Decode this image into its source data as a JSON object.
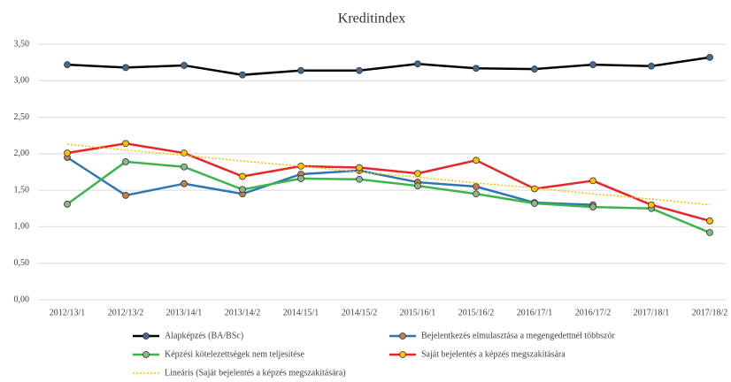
{
  "chart_data": {
    "type": "line",
    "title": "Kreditindex",
    "categories": [
      "2012/13/1",
      "2012/13/2",
      "2013/14/1",
      "2013/14/2",
      "2014/15/1",
      "2014/15/2",
      "2015/16/1",
      "2015/16/2",
      "2016/17/1",
      "2016/17/2",
      "2017/18/1",
      "2017/18/2"
    ],
    "series": [
      {
        "name": "Alapképzés (BA/BSc)",
        "color": "#000000",
        "marker_color": "#44698f",
        "values": [
          3.22,
          3.18,
          3.21,
          3.08,
          3.14,
          3.14,
          3.23,
          3.17,
          3.16,
          3.22,
          3.2,
          3.32
        ]
      },
      {
        "name": "Bejelentkezés elmulasztása a megengedettnél többször",
        "color": "#2e75b6",
        "marker_color": "#c0804a",
        "values": [
          1.95,
          1.43,
          1.59,
          1.45,
          1.72,
          1.77,
          1.61,
          1.55,
          1.33,
          1.3,
          null,
          null
        ]
      },
      {
        "name": "Képzési kötelezettségek nem teljesítése",
        "color": "#3cb44b",
        "marker_color": "#8fb48f",
        "values": [
          1.31,
          1.89,
          1.82,
          1.51,
          1.66,
          1.65,
          1.56,
          1.45,
          1.32,
          1.27,
          1.25,
          0.92
        ]
      },
      {
        "name": "Saját bejelentés a képzés megszakítására",
        "color": "#e8262a",
        "marker_color": "#ffc000",
        "values": [
          2.01,
          2.14,
          2.01,
          1.69,
          1.83,
          1.81,
          1.73,
          1.91,
          1.52,
          1.63,
          1.3,
          1.08
        ]
      },
      {
        "name": "Lineáris (Saját bejelentés a képzés megszakítására)",
        "color": "#ffc000",
        "dashed": true,
        "values": [
          2.13,
          2.05,
          1.98,
          1.9,
          1.83,
          1.75,
          1.68,
          1.6,
          1.53,
          1.45,
          1.38,
          1.3
        ]
      }
    ],
    "ylim": [
      0,
      3.5
    ],
    "yticks": [
      {
        "value": 0,
        "label": "0,00"
      },
      {
        "value": 0.5,
        "label": "0,50"
      },
      {
        "value": 1,
        "label": "1,00"
      },
      {
        "value": 1.5,
        "label": "1,50"
      },
      {
        "value": 2,
        "label": "2,00"
      },
      {
        "value": 2.5,
        "label": "2,50"
      },
      {
        "value": 3,
        "label": "3,00"
      },
      {
        "value": 3.5,
        "label": "3,50"
      }
    ],
    "grid": true
  }
}
